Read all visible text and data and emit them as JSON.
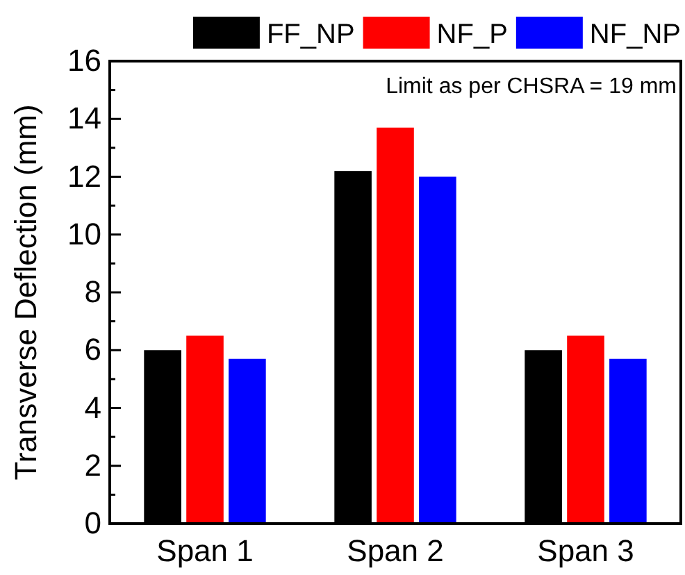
{
  "chart_data": {
    "type": "bar",
    "ylabel": "Transverse Deflection (mm)",
    "categories": [
      "Span 1",
      "Span 2",
      "Span 3"
    ],
    "series": [
      {
        "name": "FF_NP",
        "color": "#000000",
        "values": [
          6.0,
          12.2,
          6.0
        ]
      },
      {
        "name": "NF_P",
        "color": "#ff0000",
        "values": [
          6.5,
          13.7,
          6.5
        ]
      },
      {
        "name": "NF_NP",
        "color": "#0000ff",
        "values": [
          5.7,
          12.0,
          5.7
        ]
      }
    ],
    "ylim": [
      0,
      16
    ],
    "yticks": [
      0,
      2,
      4,
      6,
      8,
      10,
      12,
      14,
      16
    ],
    "legend": "top right",
    "grid": false,
    "annotations": [
      "Limit as per CHSRA = 19 mm"
    ]
  }
}
